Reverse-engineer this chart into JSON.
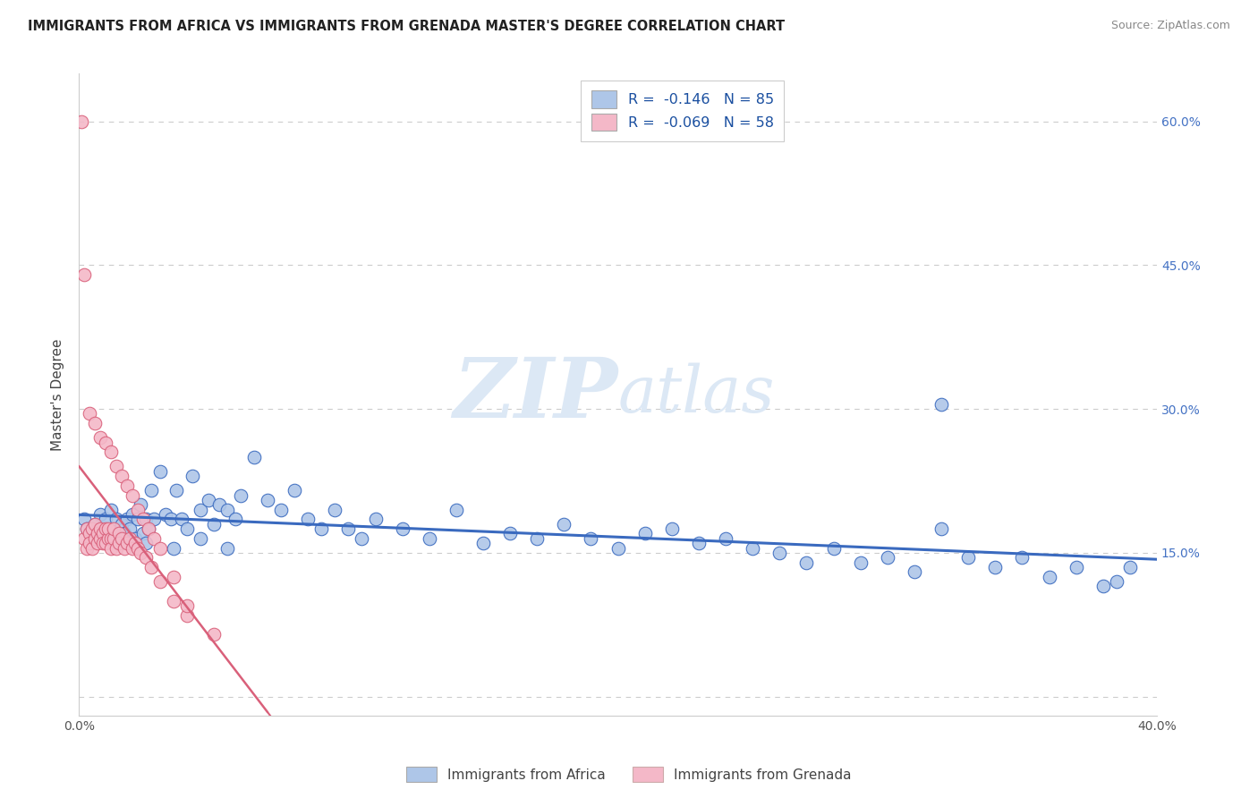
{
  "title": "IMMIGRANTS FROM AFRICA VS IMMIGRANTS FROM GRENADA MASTER'S DEGREE CORRELATION CHART",
  "source": "Source: ZipAtlas.com",
  "ylabel": "Master's Degree",
  "x_min": 0.0,
  "x_max": 0.4,
  "y_min": -0.02,
  "y_max": 0.65,
  "legend_R1": "-0.146",
  "legend_N1": "85",
  "legend_R2": "-0.069",
  "legend_N2": "58",
  "color_africa": "#aec6e8",
  "color_grenada": "#f4b8c8",
  "color_line_africa": "#3a6abf",
  "color_line_grenada": "#d9607a",
  "watermark_color": "#dce8f5",
  "africa_x": [
    0.002,
    0.003,
    0.005,
    0.006,
    0.007,
    0.008,
    0.009,
    0.01,
    0.011,
    0.012,
    0.013,
    0.014,
    0.015,
    0.016,
    0.017,
    0.018,
    0.019,
    0.02,
    0.021,
    0.022,
    0.023,
    0.024,
    0.025,
    0.026,
    0.027,
    0.028,
    0.03,
    0.032,
    0.034,
    0.036,
    0.038,
    0.04,
    0.042,
    0.045,
    0.048,
    0.05,
    0.052,
    0.055,
    0.058,
    0.06,
    0.065,
    0.07,
    0.075,
    0.08,
    0.085,
    0.09,
    0.095,
    0.1,
    0.105,
    0.11,
    0.12,
    0.13,
    0.14,
    0.15,
    0.16,
    0.17,
    0.18,
    0.19,
    0.2,
    0.21,
    0.22,
    0.23,
    0.24,
    0.25,
    0.26,
    0.27,
    0.28,
    0.29,
    0.3,
    0.31,
    0.32,
    0.33,
    0.34,
    0.35,
    0.36,
    0.37,
    0.38,
    0.385,
    0.39,
    0.015,
    0.025,
    0.035,
    0.045,
    0.055,
    0.32
  ],
  "africa_y": [
    0.185,
    0.175,
    0.17,
    0.18,
    0.165,
    0.19,
    0.175,
    0.185,
    0.17,
    0.195,
    0.175,
    0.185,
    0.165,
    0.18,
    0.17,
    0.185,
    0.175,
    0.19,
    0.165,
    0.185,
    0.2,
    0.17,
    0.185,
    0.175,
    0.215,
    0.185,
    0.235,
    0.19,
    0.185,
    0.215,
    0.185,
    0.175,
    0.23,
    0.195,
    0.205,
    0.18,
    0.2,
    0.195,
    0.185,
    0.21,
    0.25,
    0.205,
    0.195,
    0.215,
    0.185,
    0.175,
    0.195,
    0.175,
    0.165,
    0.185,
    0.175,
    0.165,
    0.195,
    0.16,
    0.17,
    0.165,
    0.18,
    0.165,
    0.155,
    0.17,
    0.175,
    0.16,
    0.165,
    0.155,
    0.15,
    0.14,
    0.155,
    0.14,
    0.145,
    0.13,
    0.175,
    0.145,
    0.135,
    0.145,
    0.125,
    0.135,
    0.115,
    0.12,
    0.135,
    0.16,
    0.16,
    0.155,
    0.165,
    0.155,
    0.305
  ],
  "grenada_x": [
    0.001,
    0.002,
    0.003,
    0.003,
    0.004,
    0.004,
    0.005,
    0.005,
    0.006,
    0.006,
    0.007,
    0.007,
    0.008,
    0.008,
    0.009,
    0.009,
    0.01,
    0.01,
    0.011,
    0.011,
    0.012,
    0.012,
    0.013,
    0.013,
    0.014,
    0.015,
    0.015,
    0.016,
    0.017,
    0.018,
    0.019,
    0.02,
    0.021,
    0.022,
    0.023,
    0.025,
    0.027,
    0.03,
    0.035,
    0.04,
    0.002,
    0.004,
    0.006,
    0.008,
    0.01,
    0.012,
    0.014,
    0.016,
    0.018,
    0.02,
    0.022,
    0.024,
    0.026,
    0.028,
    0.03,
    0.035,
    0.04,
    0.05
  ],
  "grenada_y": [
    0.6,
    0.165,
    0.175,
    0.155,
    0.17,
    0.16,
    0.175,
    0.155,
    0.18,
    0.165,
    0.17,
    0.16,
    0.165,
    0.175,
    0.17,
    0.16,
    0.175,
    0.16,
    0.165,
    0.175,
    0.165,
    0.155,
    0.165,
    0.175,
    0.155,
    0.17,
    0.16,
    0.165,
    0.155,
    0.16,
    0.165,
    0.155,
    0.16,
    0.155,
    0.15,
    0.145,
    0.135,
    0.12,
    0.1,
    0.085,
    0.44,
    0.295,
    0.285,
    0.27,
    0.265,
    0.255,
    0.24,
    0.23,
    0.22,
    0.21,
    0.195,
    0.185,
    0.175,
    0.165,
    0.155,
    0.125,
    0.095,
    0.065
  ]
}
